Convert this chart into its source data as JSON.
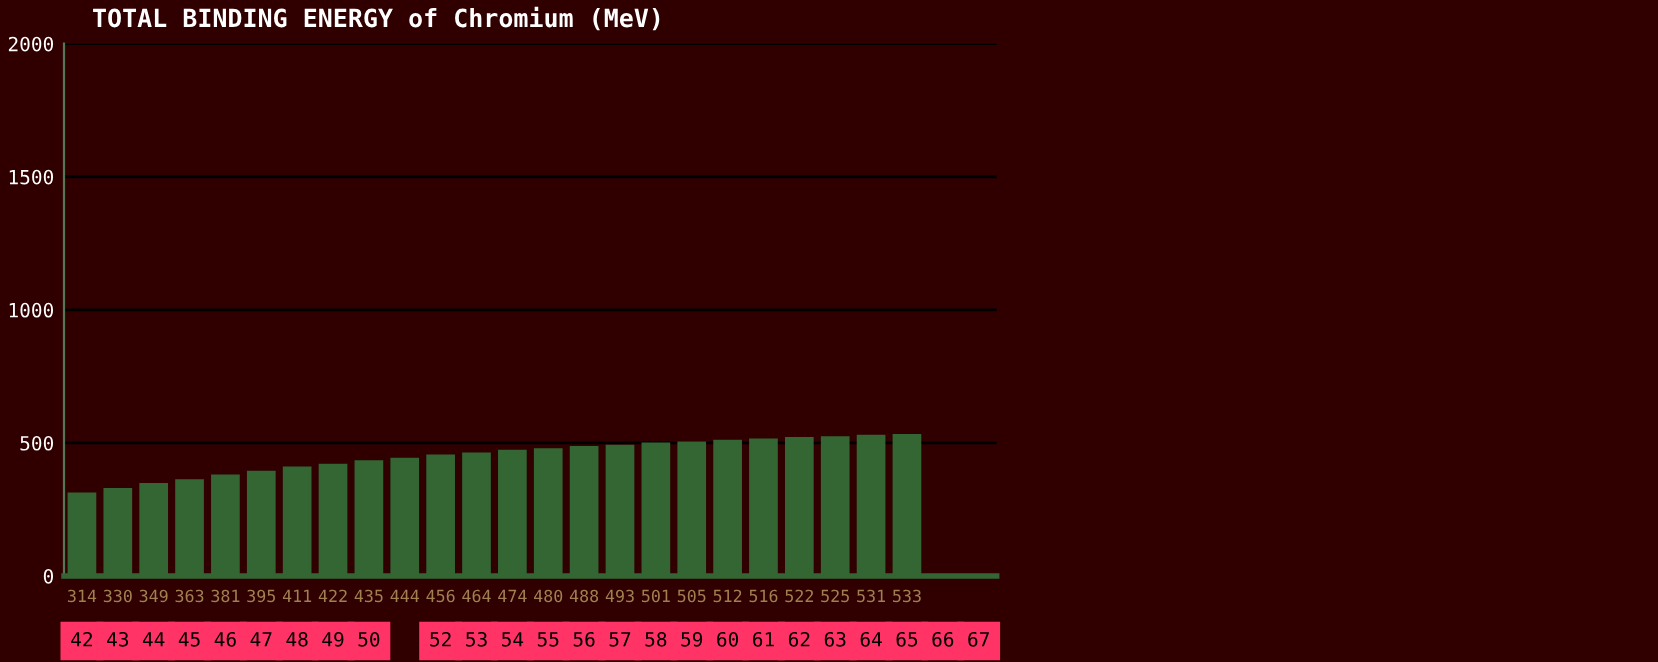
{
  "chart_data": {
    "type": "bar",
    "title": "TOTAL BINDING ENERGY of Chromium (MeV)",
    "categories": [
      "42",
      "43",
      "44",
      "45",
      "46",
      "47",
      "48",
      "49",
      "50",
      null,
      "52",
      "53",
      "54",
      "55",
      "56",
      "57",
      "58",
      "59",
      "60",
      "61",
      "62",
      "63",
      "64",
      "65",
      "66",
      "67"
    ],
    "values": [
      314,
      330,
      349,
      363,
      381,
      395,
      411,
      422,
      435,
      444,
      456,
      464,
      474,
      480,
      488,
      493,
      501,
      505,
      512,
      516,
      522,
      525,
      531,
      533,
      null,
      null
    ],
    "color": "#336633",
    "data_labels": true,
    "ylim": [
      0,
      2000
    ],
    "yticks": [
      0,
      500,
      1000,
      1500,
      2000
    ],
    "grid": "y"
  }
}
